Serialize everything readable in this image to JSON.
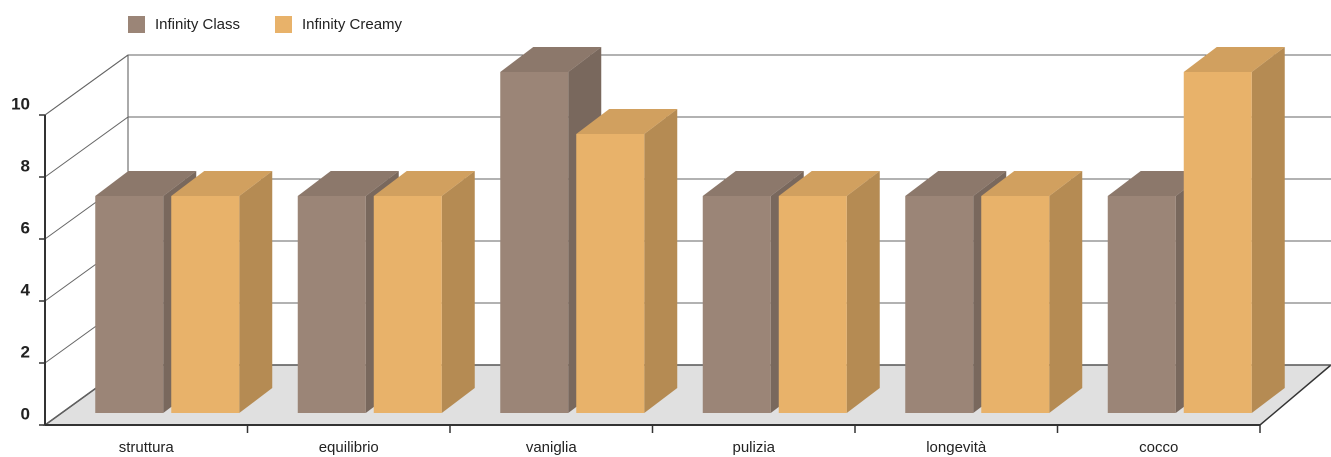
{
  "chart_data": {
    "type": "bar3d",
    "categories": [
      "struttura",
      "equilibrio",
      "vaniglia",
      "pulizia",
      "longevità",
      "cocco"
    ],
    "series": [
      {
        "name": "Infinity Class",
        "color": "#9b8577",
        "values": [
          7,
          7,
          11,
          7,
          7,
          7
        ]
      },
      {
        "name": "Infinity Creamy",
        "color": "#e8b26a",
        "values": [
          7,
          7,
          9,
          7,
          7,
          11
        ]
      }
    ],
    "ylim": [
      0,
      10
    ],
    "yticks": [
      0,
      2,
      4,
      6,
      8,
      10
    ],
    "grid": true
  }
}
